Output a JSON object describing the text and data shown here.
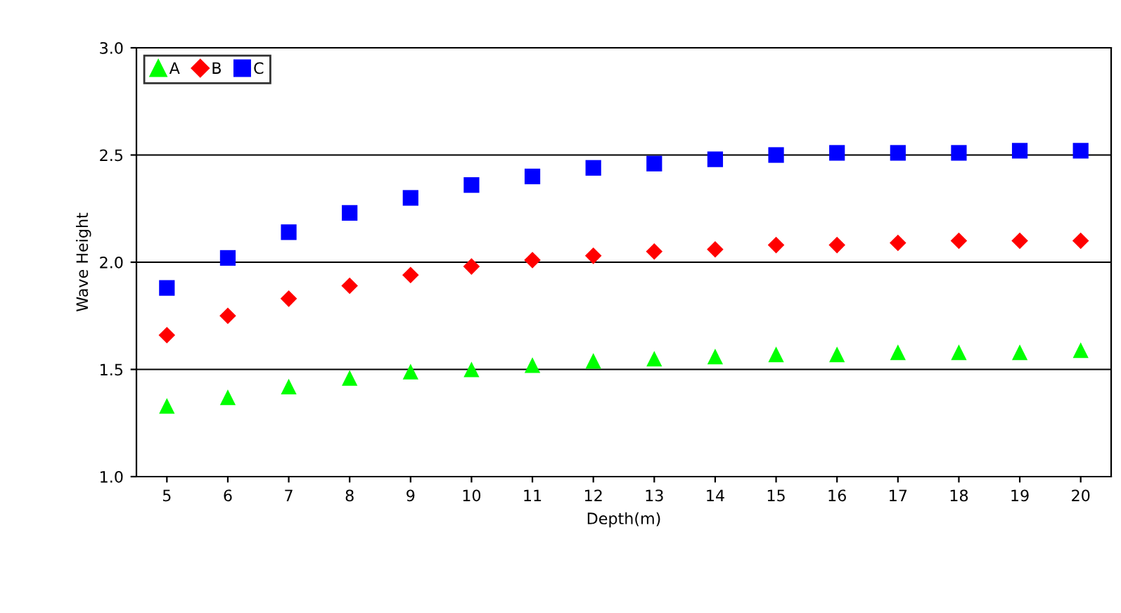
{
  "chart_data": {
    "type": "scatter",
    "xlabel": "Depth(m)",
    "ylabel": "Wave Height",
    "categories": [
      "5",
      "6",
      "7",
      "8",
      "9",
      "10",
      "11",
      "12",
      "13",
      "14",
      "15",
      "16",
      "17",
      "18",
      "19",
      "20"
    ],
    "series": [
      {
        "name": "A",
        "color": "#00ff00",
        "marker": "triangle",
        "values": [
          1.33,
          1.37,
          1.42,
          1.46,
          1.49,
          1.5,
          1.52,
          1.54,
          1.55,
          1.56,
          1.57,
          1.57,
          1.58,
          1.58,
          1.58,
          1.59
        ]
      },
      {
        "name": "B",
        "color": "#ff0000",
        "marker": "diamond",
        "values": [
          1.66,
          1.75,
          1.83,
          1.89,
          1.94,
          1.98,
          2.01,
          2.03,
          2.05,
          2.06,
          2.08,
          2.08,
          2.09,
          2.1,
          2.1,
          2.1
        ]
      },
      {
        "name": "C",
        "color": "#0000ff",
        "marker": "square",
        "values": [
          1.88,
          2.02,
          2.14,
          2.23,
          2.3,
          2.36,
          2.4,
          2.44,
          2.46,
          2.48,
          2.5,
          2.51,
          2.51,
          2.51,
          2.52,
          2.52
        ]
      }
    ],
    "ylim": [
      1.0,
      3.0
    ],
    "yticks": [
      {
        "value": 1.0,
        "label": "1.0"
      },
      {
        "value": 1.5,
        "label": "1.5"
      },
      {
        "value": 2.0,
        "label": "2.0"
      },
      {
        "value": 2.5,
        "label": "2.5"
      },
      {
        "value": 3.0,
        "label": "3.0"
      }
    ],
    "grid": "y",
    "legend": "top left"
  }
}
